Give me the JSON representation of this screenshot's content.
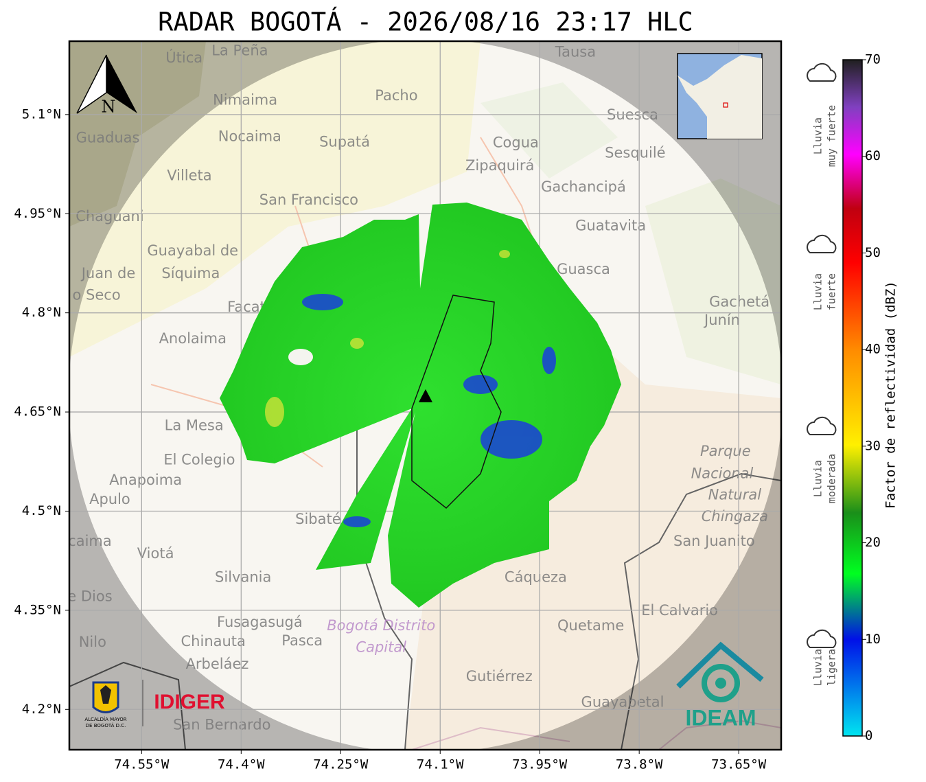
{
  "header": {
    "title": "RADAR BOGOTÁ - 2026/08/16 23:17 HLC"
  },
  "map": {
    "lon_range": [
      -74.659,
      -73.586
    ],
    "lat_range": [
      4.139,
      5.211
    ],
    "lon_ticks": [
      {
        "value": -74.55,
        "label": "74.55°W"
      },
      {
        "value": -74.4,
        "label": "74.4°W"
      },
      {
        "value": -74.25,
        "label": "74.25°W"
      },
      {
        "value": -74.1,
        "label": "74.1°W"
      },
      {
        "value": -73.95,
        "label": "73.95°W"
      },
      {
        "value": -73.8,
        "label": "73.8°W"
      },
      {
        "value": -73.65,
        "label": "73.65°W"
      }
    ],
    "lat_ticks": [
      {
        "value": 5.1,
        "label": "5.1°N"
      },
      {
        "value": 4.95,
        "label": "4.95°N"
      },
      {
        "value": 4.8,
        "label": "4.8°N"
      },
      {
        "value": 4.65,
        "label": "4.65°N"
      },
      {
        "value": 4.5,
        "label": "4.5°N"
      },
      {
        "value": 4.35,
        "label": "4.35°N"
      },
      {
        "value": 4.2,
        "label": "4.2°N"
      }
    ],
    "radar_site": {
      "lon": -74.122,
      "lat": 4.673
    },
    "places": [
      {
        "name": "Útica",
        "lon": -74.486,
        "lat": 5.185
      },
      {
        "name": "La Peña",
        "lon": -74.402,
        "lat": 5.196
      },
      {
        "name": "Tausa",
        "lon": -73.896,
        "lat": 5.194
      },
      {
        "name": "Pacho",
        "lon": -74.166,
        "lat": 5.128
      },
      {
        "name": "Nimaima",
        "lon": -74.394,
        "lat": 5.121
      },
      {
        "name": "Guaduas",
        "lon": -74.601,
        "lat": 5.064
      },
      {
        "name": "Nocaima",
        "lon": -74.387,
        "lat": 5.066
      },
      {
        "name": "Supatá",
        "lon": -74.244,
        "lat": 5.058
      },
      {
        "name": "Cogua",
        "lon": -73.986,
        "lat": 5.057
      },
      {
        "name": "Suesca",
        "lon": -73.81,
        "lat": 5.099
      },
      {
        "name": "Zipaquirá",
        "lon": -74.01,
        "lat": 5.022
      },
      {
        "name": "Sesquilé",
        "lon": -73.806,
        "lat": 5.041
      },
      {
        "name": "Villeta",
        "lon": -74.478,
        "lat": 5.007
      },
      {
        "name": "Gachancipá",
        "lon": -73.884,
        "lat": 4.99
      },
      {
        "name": "San Francisco",
        "lon": -74.298,
        "lat": 4.97
      },
      {
        "name": "Chaguani",
        "lon": -74.598,
        "lat": 4.945
      },
      {
        "name": "Guatavita",
        "lon": -73.843,
        "lat": 4.931
      },
      {
        "name": "Guayabal de",
        "lon": -74.473,
        "lat": 4.893
      },
      {
        "name": "Síquima",
        "lon": -74.476,
        "lat": 4.859
      },
      {
        "name": "Juan de",
        "lon": -74.6,
        "lat": 4.859
      },
      {
        "name": "o Seco",
        "lon": -74.618,
        "lat": 4.826
      },
      {
        "name": "Guasca",
        "lon": -73.884,
        "lat": 4.865
      },
      {
        "name": "Facatativá",
        "lon": -74.365,
        "lat": 4.808
      },
      {
        "name": "Gachetá",
        "lon": -73.649,
        "lat": 4.816
      },
      {
        "name": "Junín",
        "lon": -73.675,
        "lat": 4.788
      },
      {
        "name": "Anolaima",
        "lon": -74.473,
        "lat": 4.76
      },
      {
        "name": "La Mesa",
        "lon": -74.471,
        "lat": 4.629
      },
      {
        "name": "El Colegio",
        "lon": -74.463,
        "lat": 4.577
      },
      {
        "name": "Anapoima",
        "lon": -74.544,
        "lat": 4.546
      },
      {
        "name": "Apulo",
        "lon": -74.598,
        "lat": 4.517
      },
      {
        "name": "Sibaté",
        "lon": -74.284,
        "lat": 4.487
      },
      {
        "name": "San Juanito",
        "lon": -73.687,
        "lat": 4.454
      },
      {
        "name": "caima",
        "lon": -74.628,
        "lat": 4.454
      },
      {
        "name": "Viotá",
        "lon": -74.529,
        "lat": 4.435
      },
      {
        "name": "Silvania",
        "lon": -74.397,
        "lat": 4.399
      },
      {
        "name": "Cáqueza",
        "lon": -73.956,
        "lat": 4.399
      },
      {
        "name": "e Dios",
        "lon": -74.628,
        "lat": 4.37
      },
      {
        "name": "El Calvario",
        "lon": -73.739,
        "lat": 4.349
      },
      {
        "name": "Fusagasugá",
        "lon": -74.372,
        "lat": 4.331
      },
      {
        "name": "Quetame",
        "lon": -73.873,
        "lat": 4.326
      },
      {
        "name": "Nilo",
        "lon": -74.624,
        "lat": 4.301
      },
      {
        "name": "Chinauta",
        "lon": -74.442,
        "lat": 4.302
      },
      {
        "name": "Pasca",
        "lon": -74.308,
        "lat": 4.303
      },
      {
        "name": "Arbeláez",
        "lon": -74.436,
        "lat": 4.268
      },
      {
        "name": "Gutiérrez",
        "lon": -74.011,
        "lat": 4.249
      },
      {
        "name": "Guayabetal",
        "lon": -73.825,
        "lat": 4.21
      },
      {
        "name": "San Bernardo",
        "lon": -74.429,
        "lat": 4.176
      }
    ],
    "protected_areas": [
      {
        "name": "Parque",
        "lon": -73.67,
        "lat": 4.59
      },
      {
        "name": "Nacional",
        "lon": -73.675,
        "lat": 4.556
      },
      {
        "name": "Natural",
        "lon": -73.656,
        "lat": 4.524
      },
      {
        "name": "Chingaza",
        "lon": -73.656,
        "lat": 4.491
      }
    ],
    "district_labels": [
      {
        "name": "Bogotá Distrito",
        "lon": -74.189,
        "lat": 4.326
      },
      {
        "name": "Capital",
        "lon": -74.189,
        "lat": 4.293
      }
    ],
    "north_label": "N"
  },
  "colorbar": {
    "label": "Factor de reflectividad (dBZ)",
    "range": [
      0,
      70
    ],
    "ticks": [
      0,
      10,
      20,
      30,
      40,
      50,
      60,
      70
    ]
  },
  "legend": [
    [
      "Lluvia",
      "muy fuerte"
    ],
    [
      "Lluvia",
      "fuerte"
    ],
    [
      "Lluvia",
      "moderada"
    ],
    [
      "Lluvia",
      "ligera"
    ]
  ],
  "logos": {
    "alcaldia": [
      "ALCALDÍA MAYOR",
      "DE BOGOTÁ D.C."
    ],
    "idiger": "IDIGER",
    "ideam": "IDEAM"
  }
}
